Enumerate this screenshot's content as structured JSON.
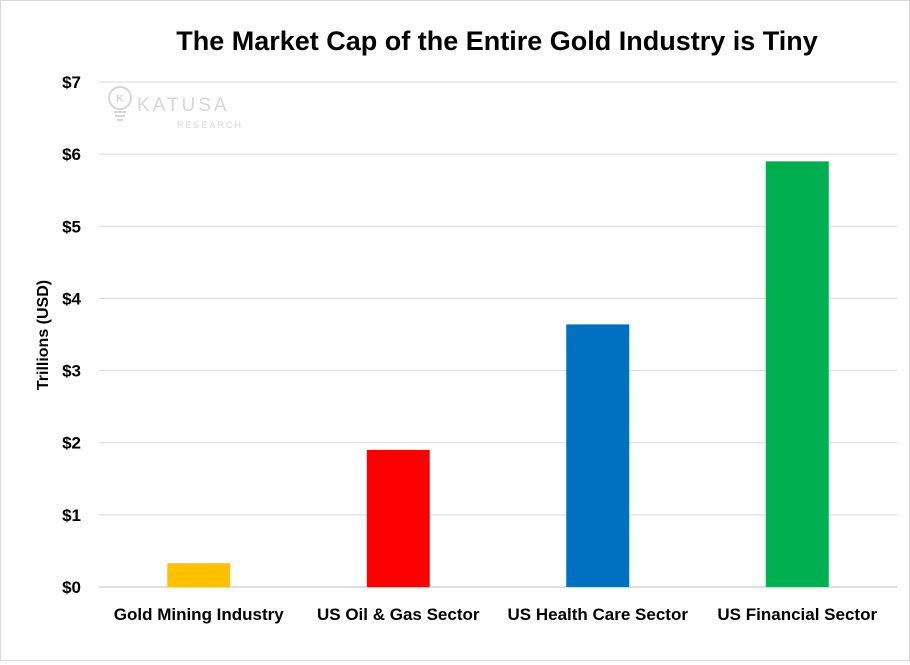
{
  "chart_data": {
    "type": "bar",
    "title": "The Market Cap of the Entire Gold Industry is Tiny",
    "xlabel": "",
    "ylabel": "Trillions (USD)",
    "ylim": [
      0,
      7
    ],
    "yticks": [
      0,
      1,
      2,
      3,
      4,
      5,
      6,
      7
    ],
    "ytick_labels": [
      "$0",
      "$1",
      "$2",
      "$3",
      "$4",
      "$5",
      "$6",
      "$7"
    ],
    "categories": [
      "Gold Mining Industry",
      "US Oil & Gas Sector",
      "US Health Care Sector",
      "US Financial Sector"
    ],
    "values": [
      0.33,
      1.9,
      3.64,
      5.9
    ],
    "colors": [
      "#FFC000",
      "#FF0000",
      "#0070C0",
      "#00B050"
    ],
    "grid": true,
    "legend": "none"
  },
  "watermark": {
    "brand": "KATUSA",
    "sub": "RESEARCH",
    "color": "#d6d6d6"
  }
}
